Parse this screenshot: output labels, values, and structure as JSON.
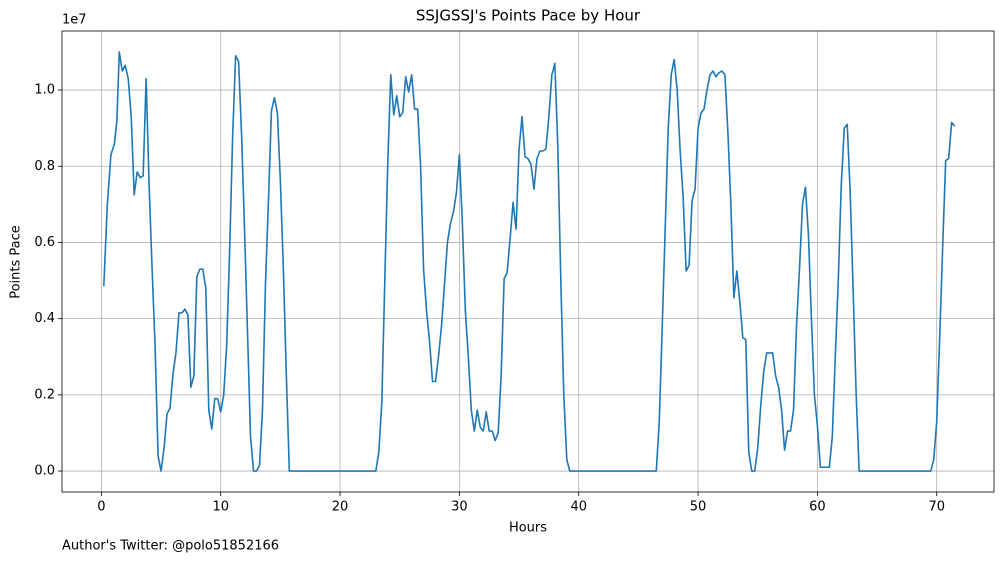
{
  "chart_data": {
    "type": "line",
    "title": "SSJGSSJ's Points Pace by Hour",
    "x_label": "Hours",
    "y_label": "Points Pace",
    "y_offset_label": "1e7",
    "footnote": "Author's Twitter: @polo51852166",
    "grid": true,
    "xlim": [
      -3.3,
      74.8
    ],
    "ylim": [
      -550000,
      11550000
    ],
    "xticks": [
      0,
      10,
      20,
      30,
      40,
      50,
      60,
      70
    ],
    "yticks": [
      {
        "value": 0,
        "label": "0.0"
      },
      {
        "value": 2000000,
        "label": "0.2"
      },
      {
        "value": 4000000,
        "label": "0.4"
      },
      {
        "value": 6000000,
        "label": "0.6"
      },
      {
        "value": 8000000,
        "label": "0.8"
      },
      {
        "value": 10000000,
        "label": "1.0"
      }
    ],
    "x": [
      0.2,
      0.5,
      0.8,
      1.1,
      1.3,
      1.5,
      1.75,
      2.0,
      2.25,
      2.5,
      2.75,
      3.0,
      3.25,
      3.5,
      3.75,
      4.0,
      4.25,
      4.5,
      4.75,
      5.0,
      5.25,
      5.5,
      5.75,
      6.0,
      6.25,
      6.5,
      6.75,
      7.0,
      7.25,
      7.5,
      7.75,
      8.0,
      8.25,
      8.5,
      8.75,
      9.0,
      9.25,
      9.5,
      9.75,
      10.0,
      10.25,
      10.5,
      10.75,
      11.0,
      11.25,
      11.5,
      11.75,
      12.0,
      12.25,
      12.5,
      12.75,
      13.0,
      13.25,
      13.5,
      13.75,
      14.0,
      14.25,
      14.5,
      14.75,
      15.0,
      15.25,
      15.5,
      15.75,
      23.0,
      23.25,
      23.5,
      23.75,
      24.0,
      24.25,
      24.5,
      24.75,
      25.0,
      25.25,
      25.5,
      25.75,
      26.0,
      26.25,
      26.5,
      26.75,
      27.0,
      27.25,
      27.5,
      27.75,
      28.0,
      28.25,
      28.5,
      28.75,
      29.0,
      29.25,
      29.5,
      29.75,
      30.0,
      30.25,
      30.5,
      30.75,
      31.0,
      31.25,
      31.5,
      31.75,
      32.0,
      32.25,
      32.5,
      32.75,
      33.0,
      33.25,
      33.5,
      33.75,
      34.0,
      34.25,
      34.5,
      34.75,
      35.0,
      35.25,
      35.5,
      35.75,
      36.0,
      36.25,
      36.5,
      36.75,
      37.0,
      37.25,
      37.5,
      37.75,
      38.0,
      38.25,
      38.5,
      38.75,
      39.0,
      39.25,
      46.5,
      46.75,
      47.0,
      47.25,
      47.5,
      47.75,
      48.0,
      48.25,
      48.5,
      48.75,
      49.0,
      49.25,
      49.5,
      49.75,
      50.0,
      50.25,
      50.5,
      50.75,
      51.0,
      51.25,
      51.5,
      51.75,
      52.0,
      52.25,
      52.5,
      52.75,
      53.0,
      53.25,
      53.5,
      53.75,
      54.0,
      54.25,
      54.5,
      54.75,
      55.0,
      55.25,
      55.5,
      55.75,
      56.0,
      56.25,
      56.5,
      56.75,
      57.0,
      57.25,
      57.5,
      57.75,
      58.0,
      58.25,
      58.5,
      58.75,
      59.0,
      59.25,
      59.5,
      59.75,
      60.0,
      60.25,
      60.5,
      60.75,
      61.0,
      61.25,
      61.5,
      61.75,
      62.0,
      62.25,
      62.5,
      62.75,
      63.0,
      63.25,
      63.5,
      69.5,
      69.75,
      70.0,
      70.25,
      70.5,
      70.75,
      71.0,
      71.25,
      71.5
    ],
    "series": [
      {
        "color": "#1f77b4",
        "values": [
          4850000,
          7000000,
          8300000,
          8600000,
          9200000,
          11000000,
          10500000,
          10650000,
          10300000,
          9300000,
          7250000,
          7850000,
          7700000,
          7750000,
          10300000,
          7500000,
          5300000,
          3300000,
          400000,
          0,
          600000,
          1500000,
          1650000,
          2550000,
          3100000,
          4150000,
          4150000,
          4250000,
          4100000,
          2200000,
          2500000,
          5100000,
          5300000,
          5300000,
          4800000,
          1600000,
          1100000,
          1900000,
          1900000,
          1550000,
          2000000,
          3300000,
          5800000,
          8800000,
          10900000,
          10750000,
          8800000,
          6300000,
          3600000,
          900000,
          0,
          0,
          150000,
          1600000,
          4900000,
          7100000,
          9450000,
          9800000,
          9400000,
          7600000,
          5300000,
          2500000,
          0,
          0,
          500000,
          1800000,
          5000000,
          8100000,
          10400000,
          9350000,
          9850000,
          9300000,
          9400000,
          10350000,
          9950000,
          10400000,
          9500000,
          9500000,
          8000000,
          5300000,
          4200000,
          3400000,
          2350000,
          2350000,
          3000000,
          3800000,
          4900000,
          6000000,
          6500000,
          6800000,
          7300000,
          8300000,
          6500000,
          4200000,
          3000000,
          1600000,
          1050000,
          1600000,
          1150000,
          1050000,
          1550000,
          1050000,
          1050000,
          800000,
          1000000,
          2500000,
          5050000,
          5200000,
          6100000,
          7050000,
          6350000,
          8450000,
          9300000,
          8250000,
          8200000,
          8050000,
          7400000,
          8200000,
          8400000,
          8400000,
          8450000,
          9300000,
          10400000,
          10700000,
          8500000,
          5000000,
          2000000,
          300000,
          0,
          0,
          1300000,
          3800000,
          6400000,
          9000000,
          10400000,
          10800000,
          10000000,
          8400000,
          7200000,
          5250000,
          5400000,
          7100000,
          7400000,
          9000000,
          9400000,
          9500000,
          10000000,
          10400000,
          10500000,
          10350000,
          10450000,
          10500000,
          10400000,
          8900000,
          7000000,
          4550000,
          5250000,
          4450000,
          3500000,
          3450000,
          500000,
          0,
          0,
          600000,
          1700000,
          2600000,
          3100000,
          3100000,
          3100000,
          2500000,
          2200000,
          1600000,
          550000,
          1050000,
          1050000,
          1600000,
          3800000,
          5300000,
          7000000,
          7450000,
          6200000,
          4000000,
          2000000,
          1200000,
          100000,
          100000,
          100000,
          100000,
          900000,
          3000000,
          5000000,
          7500000,
          9000000,
          9100000,
          7300000,
          4700000,
          2000000,
          0,
          0,
          300000,
          1300000,
          3500000,
          5900000,
          8150000,
          8200000,
          9150000,
          9050000
        ]
      }
    ]
  }
}
